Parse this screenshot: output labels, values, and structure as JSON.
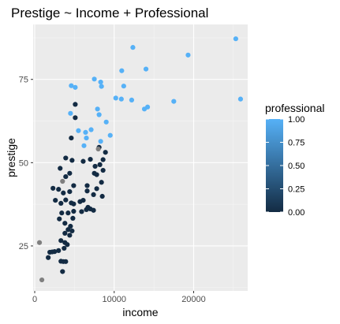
{
  "chart_data": {
    "type": "scatter",
    "title": "Prestige ~ Income + Professional",
    "xlabel": "income",
    "ylabel": "prestige",
    "xlim": [
      -200,
      26800
    ],
    "ylim": [
      11.5,
      91.5
    ],
    "x_ticks": [
      0,
      10000,
      20000
    ],
    "x_tick_labels": [
      "0",
      "10000",
      "20000"
    ],
    "y_ticks": [
      25,
      50,
      75
    ],
    "y_tick_labels": [
      "25",
      "50",
      "75"
    ],
    "grid": true,
    "legend": {
      "title": "professional",
      "position": "right",
      "gradient": [
        "#132b43",
        "#56b1f7"
      ],
      "range": [
        0,
        1
      ],
      "breaks": [
        0,
        0.25,
        0.5,
        0.75,
        1
      ],
      "break_labels": [
        "0.00",
        "0.25",
        "0.50",
        "0.75",
        "1.00"
      ]
    },
    "na_color": "#7f7f7f",
    "points": [
      {
        "x": 25300,
        "y": 87.2,
        "c": 1
      },
      {
        "x": 12350,
        "y": 84.6,
        "c": 1
      },
      {
        "x": 19300,
        "y": 82.3,
        "c": 1
      },
      {
        "x": 14000,
        "y": 78.1,
        "c": 1
      },
      {
        "x": 10950,
        "y": 77.6,
        "c": 1
      },
      {
        "x": 7500,
        "y": 75.1,
        "c": 1
      },
      {
        "x": 8300,
        "y": 74.2,
        "c": 1
      },
      {
        "x": 4600,
        "y": 73.1,
        "c": 1
      },
      {
        "x": 11200,
        "y": 73.0,
        "c": 1
      },
      {
        "x": 8400,
        "y": 72.9,
        "c": 1
      },
      {
        "x": 5100,
        "y": 72.6,
        "c": 1
      },
      {
        "x": 10200,
        "y": 69.4,
        "c": 1
      },
      {
        "x": 10900,
        "y": 69.1,
        "c": 1
      },
      {
        "x": 12200,
        "y": 68.8,
        "c": 1
      },
      {
        "x": 25900,
        "y": 69.1,
        "c": 1
      },
      {
        "x": 17500,
        "y": 68.4,
        "c": 1
      },
      {
        "x": 14200,
        "y": 66.7,
        "c": 1
      },
      {
        "x": 13800,
        "y": 66.1,
        "c": 1
      },
      {
        "x": 7900,
        "y": 66.1,
        "c": 1
      },
      {
        "x": 4500,
        "y": 64.8,
        "c": 1
      },
      {
        "x": 8100,
        "y": 64.4,
        "c": 1
      },
      {
        "x": 9000,
        "y": 62.2,
        "c": 1
      },
      {
        "x": 7100,
        "y": 59.9,
        "c": 1
      },
      {
        "x": 5500,
        "y": 59.6,
        "c": 1
      },
      {
        "x": 6400,
        "y": 59.1,
        "c": 1
      },
      {
        "x": 9500,
        "y": 58.2,
        "c": 1
      },
      {
        "x": 6500,
        "y": 57.4,
        "c": 1
      },
      {
        "x": 8300,
        "y": 56.4,
        "c": 1
      },
      {
        "x": 6200,
        "y": 55.1,
        "c": 1
      },
      {
        "x": 5100,
        "y": 67.5,
        "c": 0
      },
      {
        "x": 5100,
        "y": 63.5,
        "c": 0
      },
      {
        "x": 4600,
        "y": 57.4,
        "c": 0
      },
      {
        "x": 8100,
        "y": 54.6,
        "c": 0
      },
      {
        "x": 8900,
        "y": 53.1,
        "c": 0
      },
      {
        "x": 3900,
        "y": 51.4,
        "c": 0
      },
      {
        "x": 7000,
        "y": 51.0,
        "c": 0
      },
      {
        "x": 8600,
        "y": 50.9,
        "c": 0
      },
      {
        "x": 4700,
        "y": 50.7,
        "c": 0
      },
      {
        "x": 6100,
        "y": 50.4,
        "c": 0
      },
      {
        "x": 8200,
        "y": 49.4,
        "c": 0
      },
      {
        "x": 7600,
        "y": 48.9,
        "c": 0
      },
      {
        "x": 3200,
        "y": 48.3,
        "c": 0
      },
      {
        "x": 8600,
        "y": 47.7,
        "c": 0
      },
      {
        "x": 4400,
        "y": 46.8,
        "c": 0
      },
      {
        "x": 7500,
        "y": 46.8,
        "c": 0
      },
      {
        "x": 7800,
        "y": 46.4,
        "c": 0
      },
      {
        "x": 3900,
        "y": 45.8,
        "c": 0
      },
      {
        "x": 8400,
        "y": 44.1,
        "c": 0
      },
      {
        "x": 4900,
        "y": 43.1,
        "c": 0
      },
      {
        "x": 6600,
        "y": 43.1,
        "c": 0
      },
      {
        "x": 2300,
        "y": 42.3,
        "c": 0
      },
      {
        "x": 3000,
        "y": 42.0,
        "c": 0
      },
      {
        "x": 7800,
        "y": 42.2,
        "c": 0
      },
      {
        "x": 6600,
        "y": 41.5,
        "c": 0
      },
      {
        "x": 4400,
        "y": 41.3,
        "c": 0
      },
      {
        "x": 3600,
        "y": 40.9,
        "c": 0
      },
      {
        "x": 7400,
        "y": 40.4,
        "c": 0
      },
      {
        "x": 8500,
        "y": 39.9,
        "c": 0
      },
      {
        "x": 2600,
        "y": 38.7,
        "c": 0
      },
      {
        "x": 3900,
        "y": 38.8,
        "c": 0
      },
      {
        "x": 6100,
        "y": 38.7,
        "c": 0
      },
      {
        "x": 5700,
        "y": 38.3,
        "c": 0
      },
      {
        "x": 3300,
        "y": 37.8,
        "c": 0
      },
      {
        "x": 4600,
        "y": 37.9,
        "c": 0
      },
      {
        "x": 4900,
        "y": 37.6,
        "c": 0
      },
      {
        "x": 6700,
        "y": 36.6,
        "c": 0
      },
      {
        "x": 7000,
        "y": 36.1,
        "c": 0
      },
      {
        "x": 6500,
        "y": 35.9,
        "c": 0
      },
      {
        "x": 7400,
        "y": 35.7,
        "c": 0
      },
      {
        "x": 4900,
        "y": 35.4,
        "c": 0
      },
      {
        "x": 3400,
        "y": 34.9,
        "c": 0
      },
      {
        "x": 4200,
        "y": 34.9,
        "c": 0
      },
      {
        "x": 5900,
        "y": 35.3,
        "c": 0
      },
      {
        "x": 4800,
        "y": 33.3,
        "c": 0
      },
      {
        "x": 3100,
        "y": 33.1,
        "c": 0
      },
      {
        "x": 3800,
        "y": 31.8,
        "c": 0
      },
      {
        "x": 4500,
        "y": 30.9,
        "c": 0
      },
      {
        "x": 4200,
        "y": 29.9,
        "c": 0
      },
      {
        "x": 4700,
        "y": 29.5,
        "c": 0
      },
      {
        "x": 3800,
        "y": 28.8,
        "c": 0
      },
      {
        "x": 4400,
        "y": 28.2,
        "c": 0
      },
      {
        "x": 3300,
        "y": 26.6,
        "c": 0
      },
      {
        "x": 3800,
        "y": 26.0,
        "c": 0
      },
      {
        "x": 4100,
        "y": 25.4,
        "c": 0
      },
      {
        "x": 3700,
        "y": 24.3,
        "c": 0
      },
      {
        "x": 2500,
        "y": 23.3,
        "c": 0
      },
      {
        "x": 1900,
        "y": 23.1,
        "c": 0
      },
      {
        "x": 2200,
        "y": 23.2,
        "c": 0
      },
      {
        "x": 3000,
        "y": 23.6,
        "c": 0
      },
      {
        "x": 1700,
        "y": 21.5,
        "c": 0
      },
      {
        "x": 3300,
        "y": 20.4,
        "c": 0
      },
      {
        "x": 3600,
        "y": 20.3,
        "c": 0
      },
      {
        "x": 3900,
        "y": 20.3,
        "c": 0
      },
      {
        "x": 3500,
        "y": 17.3,
        "c": 0
      },
      {
        "x": 3500,
        "y": 44.4,
        "c": null
      },
      {
        "x": 8000,
        "y": 54.1,
        "c": null
      },
      {
        "x": 600,
        "y": 26.0,
        "c": null
      },
      {
        "x": 900,
        "y": 14.8,
        "c": null
      }
    ]
  }
}
